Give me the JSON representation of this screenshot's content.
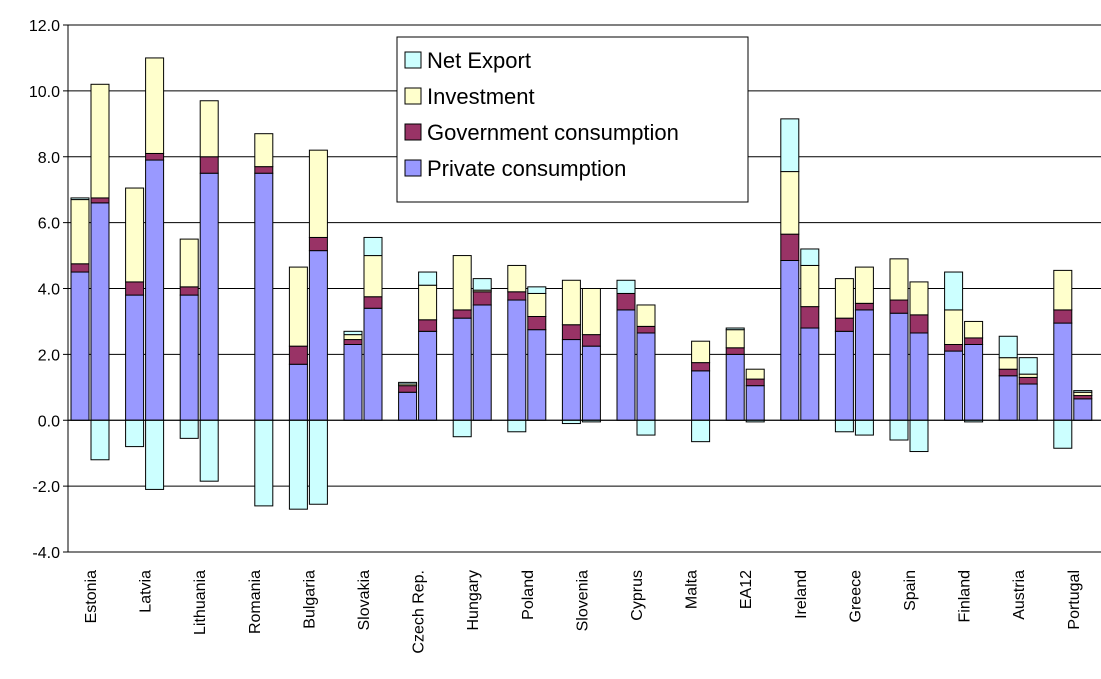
{
  "chart_data": {
    "type": "bar",
    "stacked": true,
    "diverging": true,
    "grid": true,
    "legend_position": "top-center",
    "ylim": [
      -4.0,
      12.0
    ],
    "yticks": [
      "12.0",
      "10.0",
      "8.0",
      "6.0",
      "4.0",
      "2.0",
      "0.0",
      "-2.0",
      "-4.0"
    ],
    "ytick_values": [
      12,
      10,
      8,
      6,
      4,
      2,
      0,
      -2,
      -4
    ],
    "categories": [
      "Estonia",
      "Latvia",
      "Lithuania",
      "Romania",
      "Bulgaria",
      "Slovakia",
      "Czech Rep.",
      "Hungary",
      "Poland",
      "Slovenia",
      "Cyprus",
      "Malta",
      "EA12",
      "Ireland",
      "Greece",
      "Spain",
      "Finland",
      "Austria",
      "Portugal"
    ],
    "series": [
      {
        "name": "Private consumption",
        "color": "#9999ff",
        "values": [
          [
            4.5,
            6.6
          ],
          [
            3.8,
            7.9
          ],
          [
            3.8,
            7.5
          ],
          [
            null,
            7.5
          ],
          [
            1.7,
            5.15
          ],
          [
            2.3,
            3.4
          ],
          [
            0.85,
            2.7
          ],
          [
            3.1,
            3.5
          ],
          [
            3.65,
            2.75
          ],
          [
            2.45,
            2.25
          ],
          [
            3.35,
            2.65
          ],
          [
            null,
            1.5
          ],
          [
            2.0,
            1.05
          ],
          [
            4.85,
            2.8
          ],
          [
            2.7,
            3.35
          ],
          [
            3.25,
            2.65
          ],
          [
            2.1,
            2.3
          ],
          [
            1.35,
            1.1
          ],
          [
            2.95,
            0.65
          ]
        ]
      },
      {
        "name": "Government consumption",
        "color": "#993366",
        "values": [
          [
            0.25,
            0.15
          ],
          [
            0.4,
            0.2
          ],
          [
            0.25,
            0.5
          ],
          [
            null,
            0.2
          ],
          [
            0.55,
            0.4
          ],
          [
            0.15,
            0.35
          ],
          [
            0.2,
            0.35
          ],
          [
            0.25,
            0.4
          ],
          [
            0.25,
            0.4
          ],
          [
            0.45,
            0.35
          ],
          [
            0.5,
            0.2
          ],
          [
            null,
            0.25
          ],
          [
            0.2,
            0.2
          ],
          [
            0.8,
            0.65
          ],
          [
            0.4,
            0.2
          ],
          [
            0.4,
            0.55
          ],
          [
            0.2,
            0.2
          ],
          [
            0.2,
            0.2
          ],
          [
            0.4,
            0.1
          ]
        ]
      },
      {
        "name": "Investment",
        "color": "#ffffcc",
        "values": [
          [
            1.95,
            3.45
          ],
          [
            2.85,
            2.9
          ],
          [
            1.45,
            1.7
          ],
          [
            null,
            1.0
          ],
          [
            2.4,
            2.65
          ],
          [
            0.15,
            1.25
          ],
          [
            0.05,
            1.05
          ],
          [
            1.65,
            0.05
          ],
          [
            0.8,
            0.7
          ],
          [
            1.35,
            1.4
          ],
          [
            0.0,
            0.65
          ],
          [
            null,
            0.65
          ],
          [
            0.55,
            0.3
          ],
          [
            1.9,
            1.25
          ],
          [
            1.2,
            1.1
          ],
          [
            1.25,
            1.0
          ],
          [
            1.05,
            0.5
          ],
          [
            0.35,
            0.1
          ],
          [
            1.2,
            0.1
          ]
        ]
      },
      {
        "name": "Net Export",
        "color": "#ccffff",
        "values": [
          [
            0.05,
            -1.2
          ],
          [
            -0.8,
            -2.1
          ],
          [
            -0.55,
            -1.85
          ],
          [
            null,
            -2.6
          ],
          [
            -2.7,
            -2.55
          ],
          [
            0.1,
            0.55
          ],
          [
            0.05,
            0.4
          ],
          [
            -0.5,
            0.35
          ],
          [
            -0.35,
            0.2
          ],
          [
            -0.1,
            -0.05
          ],
          [
            0.4,
            -0.45
          ],
          [
            null,
            -0.65
          ],
          [
            0.05,
            -0.05
          ],
          [
            1.6,
            0.5
          ],
          [
            -0.35,
            -0.45
          ],
          [
            -0.6,
            -0.95
          ],
          [
            1.15,
            -0.05
          ],
          [
            0.65,
            0.5
          ],
          [
            -0.85,
            0.05
          ]
        ]
      }
    ],
    "legend": [
      "Net Export",
      "Investment",
      "Government consumption",
      "Private consumption"
    ]
  }
}
